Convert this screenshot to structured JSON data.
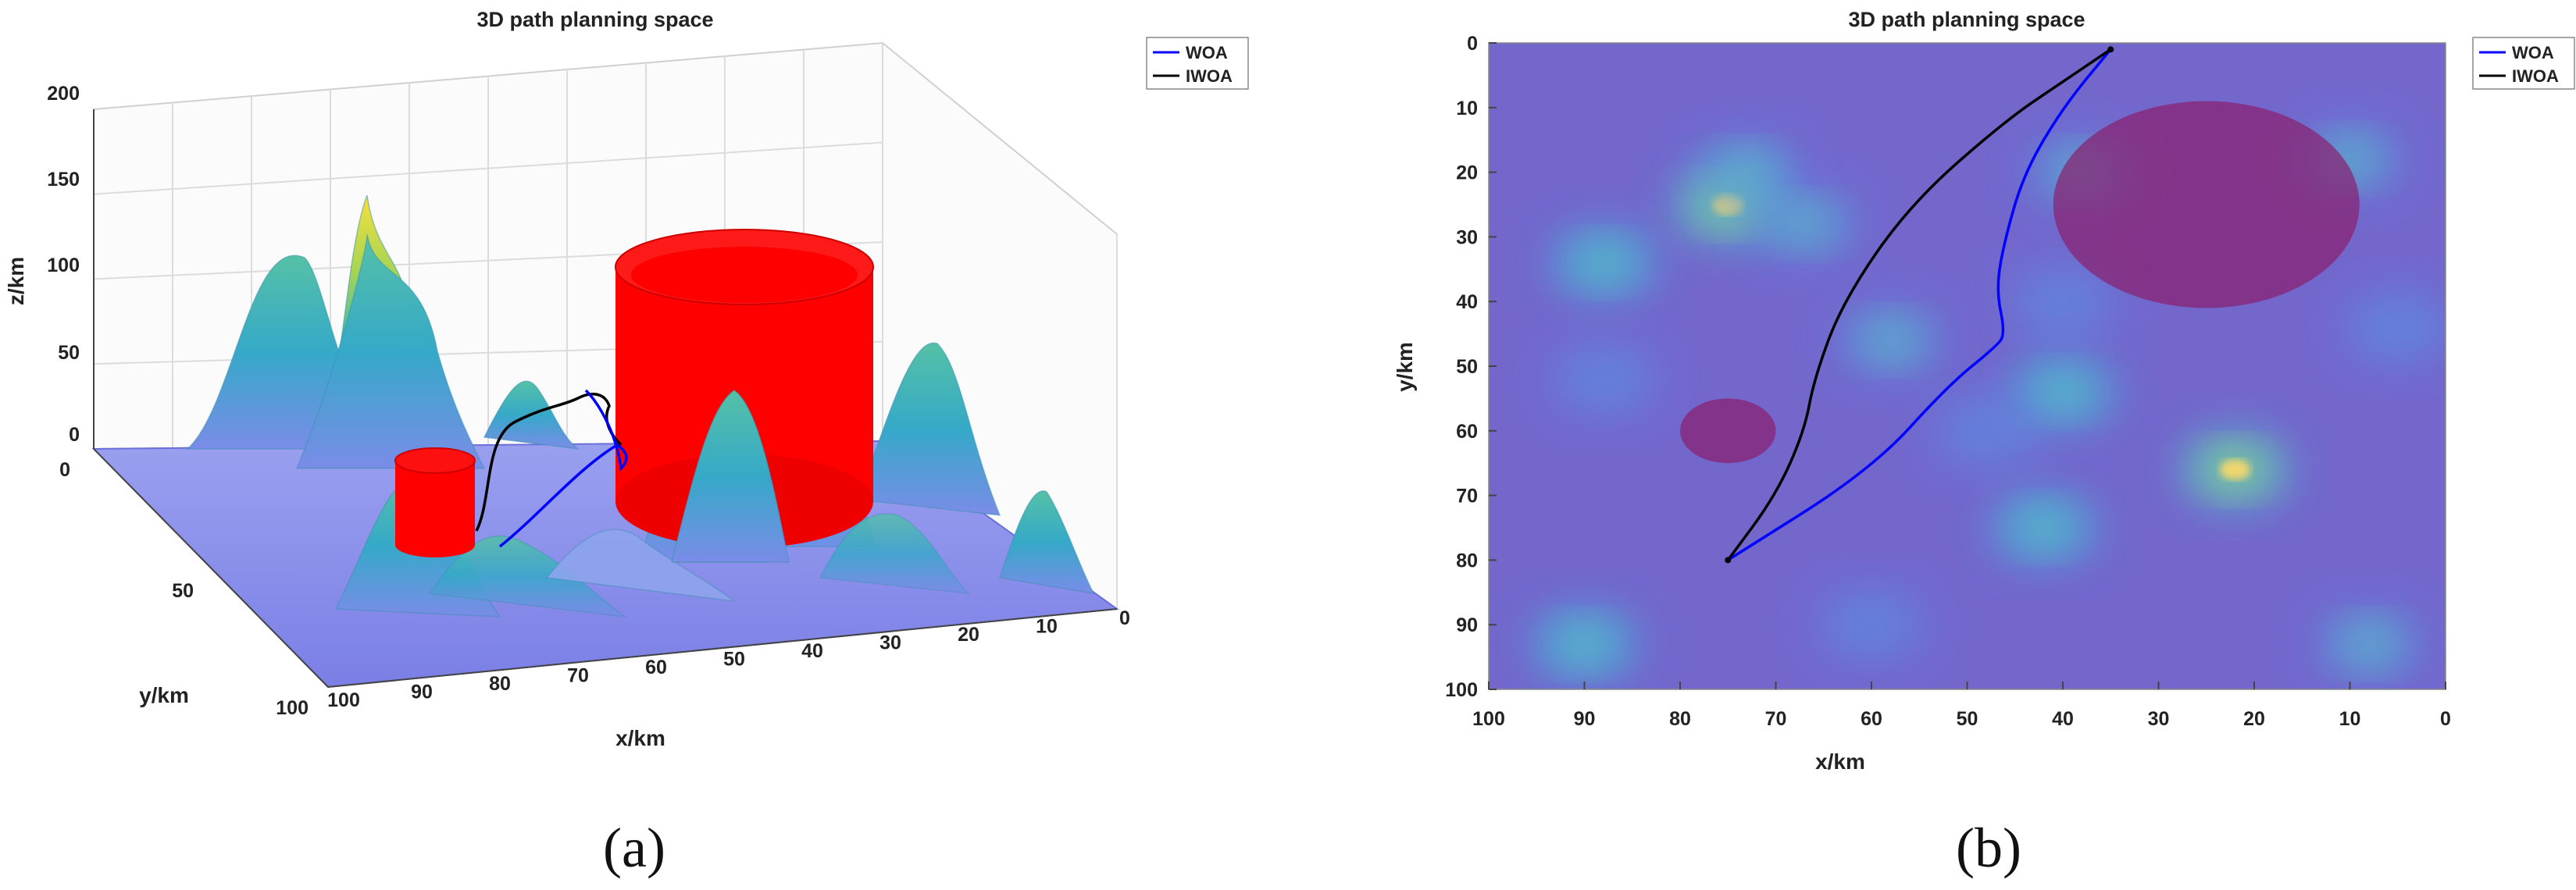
{
  "chart_data": [
    {
      "panel_label": "(a)",
      "type": "surface",
      "title": "3D path planning space",
      "xlabel": "x/km",
      "ylabel": "y/km",
      "zlabel": "z/km",
      "xlim": [
        0,
        100
      ],
      "ylim": [
        0,
        100
      ],
      "zlim": [
        0,
        200
      ],
      "x_ticks": [
        "0",
        "10",
        "20",
        "30",
        "40",
        "50",
        "60",
        "70",
        "80",
        "90",
        "100"
      ],
      "y_ticks": [
        "0",
        "50",
        "100"
      ],
      "z_ticks": [
        "0",
        "50",
        "100",
        "150",
        "200"
      ],
      "legend": {
        "position": "top-right",
        "entries": [
          "WOA",
          "IWOA"
        ]
      },
      "series": [
        {
          "name": "WOA",
          "color": "#0000ff"
        },
        {
          "name": "IWOA",
          "color": "#000000"
        }
      ],
      "obstacles_color": "#ff0000"
    },
    {
      "panel_label": "(b)",
      "type": "heatmap",
      "title": "3D path planning space",
      "xlabel": "x/km",
      "ylabel": "y/km",
      "xlim": [
        100,
        0
      ],
      "ylim": [
        0,
        100
      ],
      "x_ticks": [
        "100",
        "90",
        "80",
        "70",
        "60",
        "50",
        "40",
        "30",
        "20",
        "10",
        "0"
      ],
      "y_ticks": [
        "0",
        "10",
        "20",
        "30",
        "40",
        "50",
        "60",
        "70",
        "80",
        "90",
        "100"
      ],
      "legend": {
        "position": "top-right",
        "entries": [
          "WOA",
          "IWOA"
        ]
      },
      "start": [
        75,
        80
      ],
      "goal": [
        35,
        1
      ],
      "obstacles": [
        {
          "center": [
            25,
            25
          ],
          "radius": 16
        },
        {
          "center": [
            75,
            60
          ],
          "radius": 5
        }
      ],
      "peaks": [
        {
          "x": 75,
          "y": 25,
          "height": 1.0
        },
        {
          "x": 22,
          "y": 66,
          "height": 0.95
        },
        {
          "x": 73,
          "y": 20,
          "height": 0.5
        },
        {
          "x": 67,
          "y": 28,
          "height": 0.45
        },
        {
          "x": 88,
          "y": 34,
          "height": 0.55
        },
        {
          "x": 90,
          "y": 93,
          "height": 0.6
        },
        {
          "x": 58,
          "y": 46,
          "height": 0.45
        },
        {
          "x": 40,
          "y": 54,
          "height": 0.55
        },
        {
          "x": 42,
          "y": 75,
          "height": 0.55
        },
        {
          "x": 38,
          "y": 20,
          "height": 0.45
        },
        {
          "x": 10,
          "y": 18,
          "height": 0.45
        },
        {
          "x": 5,
          "y": 44,
          "height": 0.4
        },
        {
          "x": 8,
          "y": 93,
          "height": 0.45
        },
        {
          "x": 60,
          "y": 90,
          "height": 0.35
        },
        {
          "x": 88,
          "y": 52,
          "height": 0.35
        },
        {
          "x": 40,
          "y": 40,
          "height": 0.3
        },
        {
          "x": 48,
          "y": 60,
          "height": 0.3
        }
      ],
      "series": [
        {
          "name": "WOA",
          "color": "#0000ff",
          "points": [
            [
              75,
              80
            ],
            [
              60,
              66
            ],
            [
              52,
              53
            ],
            [
              47,
              47
            ],
            [
              46,
              45
            ],
            [
              47,
              38
            ],
            [
              46,
              30
            ],
            [
              44,
              20
            ],
            [
              40,
              10
            ],
            [
              35,
              1
            ]
          ]
        },
        {
          "name": "IWOA",
          "color": "#000000",
          "points": [
            [
              75,
              80
            ],
            [
              70,
              70
            ],
            [
              67,
              60
            ],
            [
              66,
              52
            ],
            [
              63,
              40
            ],
            [
              56,
              25
            ],
            [
              46,
              12
            ],
            [
              40,
              6
            ],
            [
              35,
              1
            ]
          ]
        }
      ]
    }
  ]
}
